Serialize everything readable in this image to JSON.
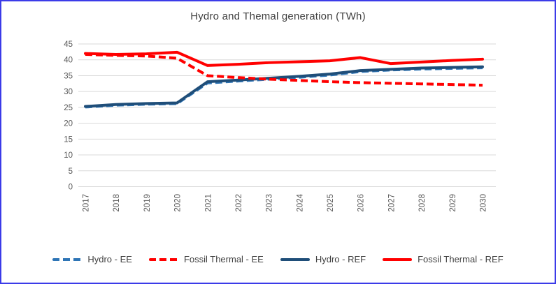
{
  "frame": {
    "border_color": "#3B3BE8",
    "background_color": "#FFFFFF"
  },
  "chart_data": {
    "type": "line",
    "title": "Hydro and Themal generation (TWh)",
    "xlabel": "",
    "ylabel": "",
    "x_categories": [
      "2017",
      "2018",
      "2019",
      "2020",
      "2021",
      "2022",
      "2023",
      "2024",
      "2025",
      "2026",
      "2027",
      "2028",
      "2029",
      "2030"
    ],
    "y_axis": {
      "min": 0,
      "max": 45,
      "step": 5,
      "tick_labels": [
        "0",
        "5",
        "10",
        "15",
        "20",
        "25",
        "30",
        "35",
        "40",
        "45"
      ]
    },
    "grid": "horizontal",
    "gridline_color": "#D9D9D9",
    "axis_text_color": "#595959",
    "title_color": "#404040",
    "legend_position": "bottom",
    "series": [
      {
        "name": "Hydro - EE",
        "color": "#2E75B6",
        "style": "dashed",
        "values": [
          25.1,
          25.7,
          26.0,
          26.2,
          32.7,
          33.3,
          33.9,
          34.5,
          35.2,
          36.3,
          36.8,
          37.1,
          37.3,
          37.5
        ]
      },
      {
        "name": "Fossil Thermal - EE",
        "color": "#FF0000",
        "style": "dashed",
        "values": [
          41.7,
          41.4,
          41.2,
          40.5,
          35.0,
          34.4,
          33.9,
          33.5,
          33.1,
          32.8,
          32.6,
          32.4,
          32.2,
          32.0
        ]
      },
      {
        "name": "Hydro - REF",
        "color": "#1F4E79",
        "style": "solid",
        "values": [
          25.3,
          25.9,
          26.2,
          26.4,
          33.1,
          33.6,
          34.2,
          34.8,
          35.5,
          36.6,
          37.0,
          37.4,
          37.6,
          37.8
        ]
      },
      {
        "name": "Fossil Thermal - REF",
        "color": "#FF0000",
        "style": "solid",
        "values": [
          42.0,
          41.7,
          41.9,
          42.4,
          38.2,
          38.6,
          39.1,
          39.4,
          39.7,
          40.7,
          38.8,
          39.3,
          39.8,
          40.2
        ]
      }
    ]
  }
}
